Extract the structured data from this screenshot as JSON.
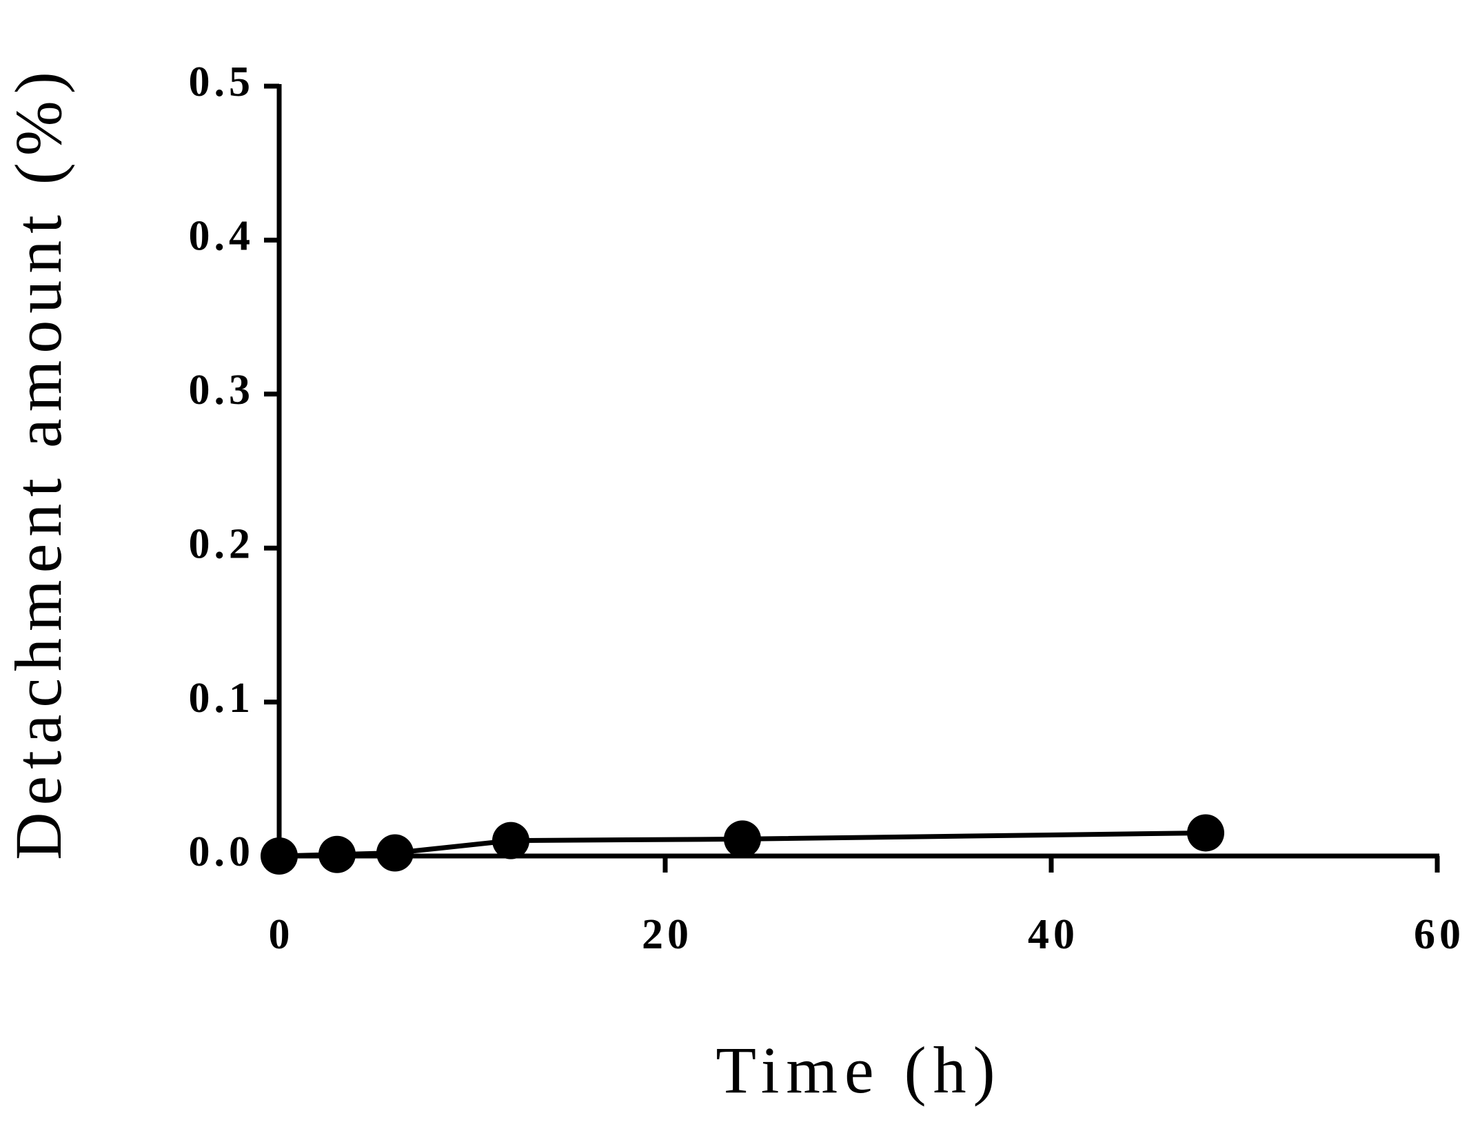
{
  "chart_data": {
    "type": "line",
    "x_label": "Time (h)",
    "y_label": "Detachment amount (%)",
    "x": [
      0,
      3,
      6,
      12,
      24,
      48
    ],
    "values": [
      0,
      0.001,
      0.002,
      0.01,
      0.011,
      0.015
    ],
    "color": "#000000",
    "xlim": [
      0,
      60
    ],
    "xticks": [
      0,
      20,
      40,
      60
    ],
    "ylim": [
      0,
      0.5
    ],
    "yticks": [
      {
        "value": 0,
        "label": "0.0"
      },
      0.1,
      0.2,
      0.3,
      0.4,
      0.5
    ],
    "grid": false
  }
}
